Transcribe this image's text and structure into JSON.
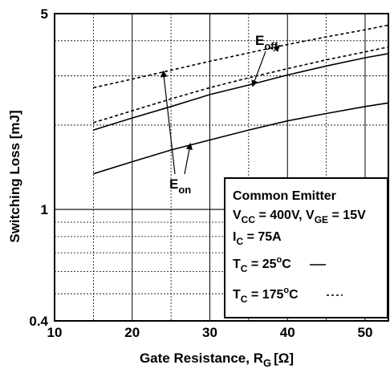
{
  "chart_data": {
    "type": "line",
    "xlabel": "Gate Resistance, R",
    "xlabel_sub": "G",
    "xlabel_unit": "[Ω]",
    "ylabel": "Switching Loss [mJ]",
    "y_scale": "log",
    "xlim": [
      10,
      53
    ],
    "ylim": [
      0.4,
      5
    ],
    "x_ticks": [
      "10",
      "20",
      "30",
      "40",
      "50"
    ],
    "y_ticks": [
      "0.4",
      "1",
      "5"
    ],
    "grid": true,
    "series": [
      {
        "name": "E_off",
        "condition": "T_C = 25°C",
        "style": "solid",
        "x": [
          15,
          20,
          25,
          30,
          35,
          40,
          45,
          50,
          53
        ],
        "y": [
          1.92,
          2.12,
          2.33,
          2.57,
          2.78,
          3.02,
          3.25,
          3.48,
          3.6
        ]
      },
      {
        "name": "E_off",
        "condition": "T_C = 175°C",
        "style": "dashed",
        "x": [
          15,
          20,
          25,
          30,
          35,
          40,
          45,
          50,
          53
        ],
        "y": [
          2.72,
          2.92,
          3.14,
          3.38,
          3.62,
          3.88,
          4.13,
          4.38,
          4.55
        ]
      },
      {
        "name": "E_on",
        "condition": "T_C = 25°C",
        "style": "solid",
        "x": [
          15,
          20,
          25,
          30,
          35,
          40,
          45,
          50,
          53
        ],
        "y": [
          1.34,
          1.48,
          1.63,
          1.77,
          1.92,
          2.07,
          2.2,
          2.33,
          2.4
        ]
      },
      {
        "name": "E_on",
        "condition": "T_C = 175°C",
        "style": "dashed",
        "x": [
          15,
          20,
          25,
          30,
          35,
          40,
          45,
          50,
          53
        ],
        "y": [
          2.04,
          2.25,
          2.48,
          2.72,
          2.95,
          3.18,
          3.42,
          3.65,
          3.8
        ]
      }
    ],
    "annotations": {
      "e_off": {
        "main": "E",
        "sub": "off"
      },
      "e_on": {
        "main": "E",
        "sub": "on"
      }
    },
    "legend_box": {
      "line1": "Common Emitter",
      "line2": {
        "v1": "V",
        "s1": "CC",
        "t1": " = 400V, V",
        "s2": "GE",
        "t2": " = 15V"
      },
      "line3": {
        "v": "I",
        "s": "C",
        "t": " = 75A"
      },
      "line4": {
        "v": "T",
        "s": "C",
        "t": " = 25",
        "sup": "o",
        "t2": "C"
      },
      "line5": {
        "v": "T",
        "s": "C",
        "t": " = 175",
        "sup": "o",
        "t2": "C"
      }
    }
  }
}
